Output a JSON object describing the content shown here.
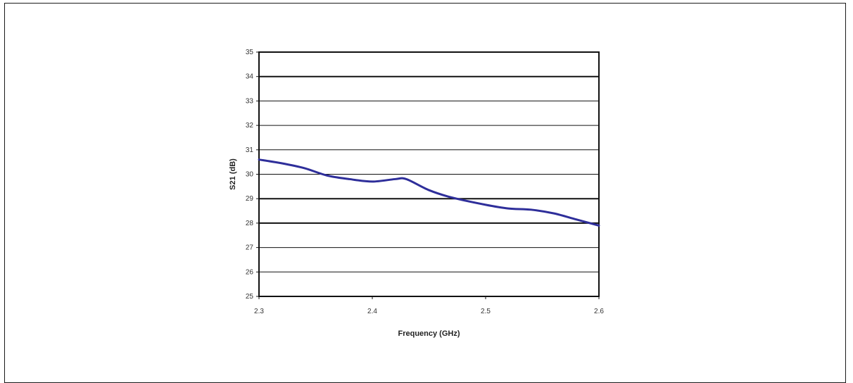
{
  "chart_data": {
    "type": "line",
    "title": "",
    "xlabel": "Frequency (GHz)",
    "ylabel": "S21 (dB)",
    "xlim": [
      2.3,
      2.6
    ],
    "ylim": [
      25,
      35
    ],
    "x_ticks": [
      "2.3",
      "2.4",
      "2.5",
      "2.6"
    ],
    "y_ticks": [
      "25",
      "26",
      "27",
      "28",
      "29",
      "30",
      "31",
      "32",
      "33",
      "34",
      "35"
    ],
    "grid": "horizontal",
    "legend": "none",
    "series": [
      {
        "color": "#2e2e9a",
        "x": [
          2.3,
          2.32,
          2.34,
          2.36,
          2.38,
          2.4,
          2.42,
          2.43,
          2.45,
          2.47,
          2.5,
          2.52,
          2.54,
          2.56,
          2.58,
          2.6
        ],
        "y": [
          30.6,
          30.45,
          30.25,
          29.95,
          29.8,
          29.7,
          29.8,
          29.8,
          29.35,
          29.05,
          28.75,
          28.6,
          28.55,
          28.4,
          28.15,
          27.9
        ]
      }
    ]
  }
}
